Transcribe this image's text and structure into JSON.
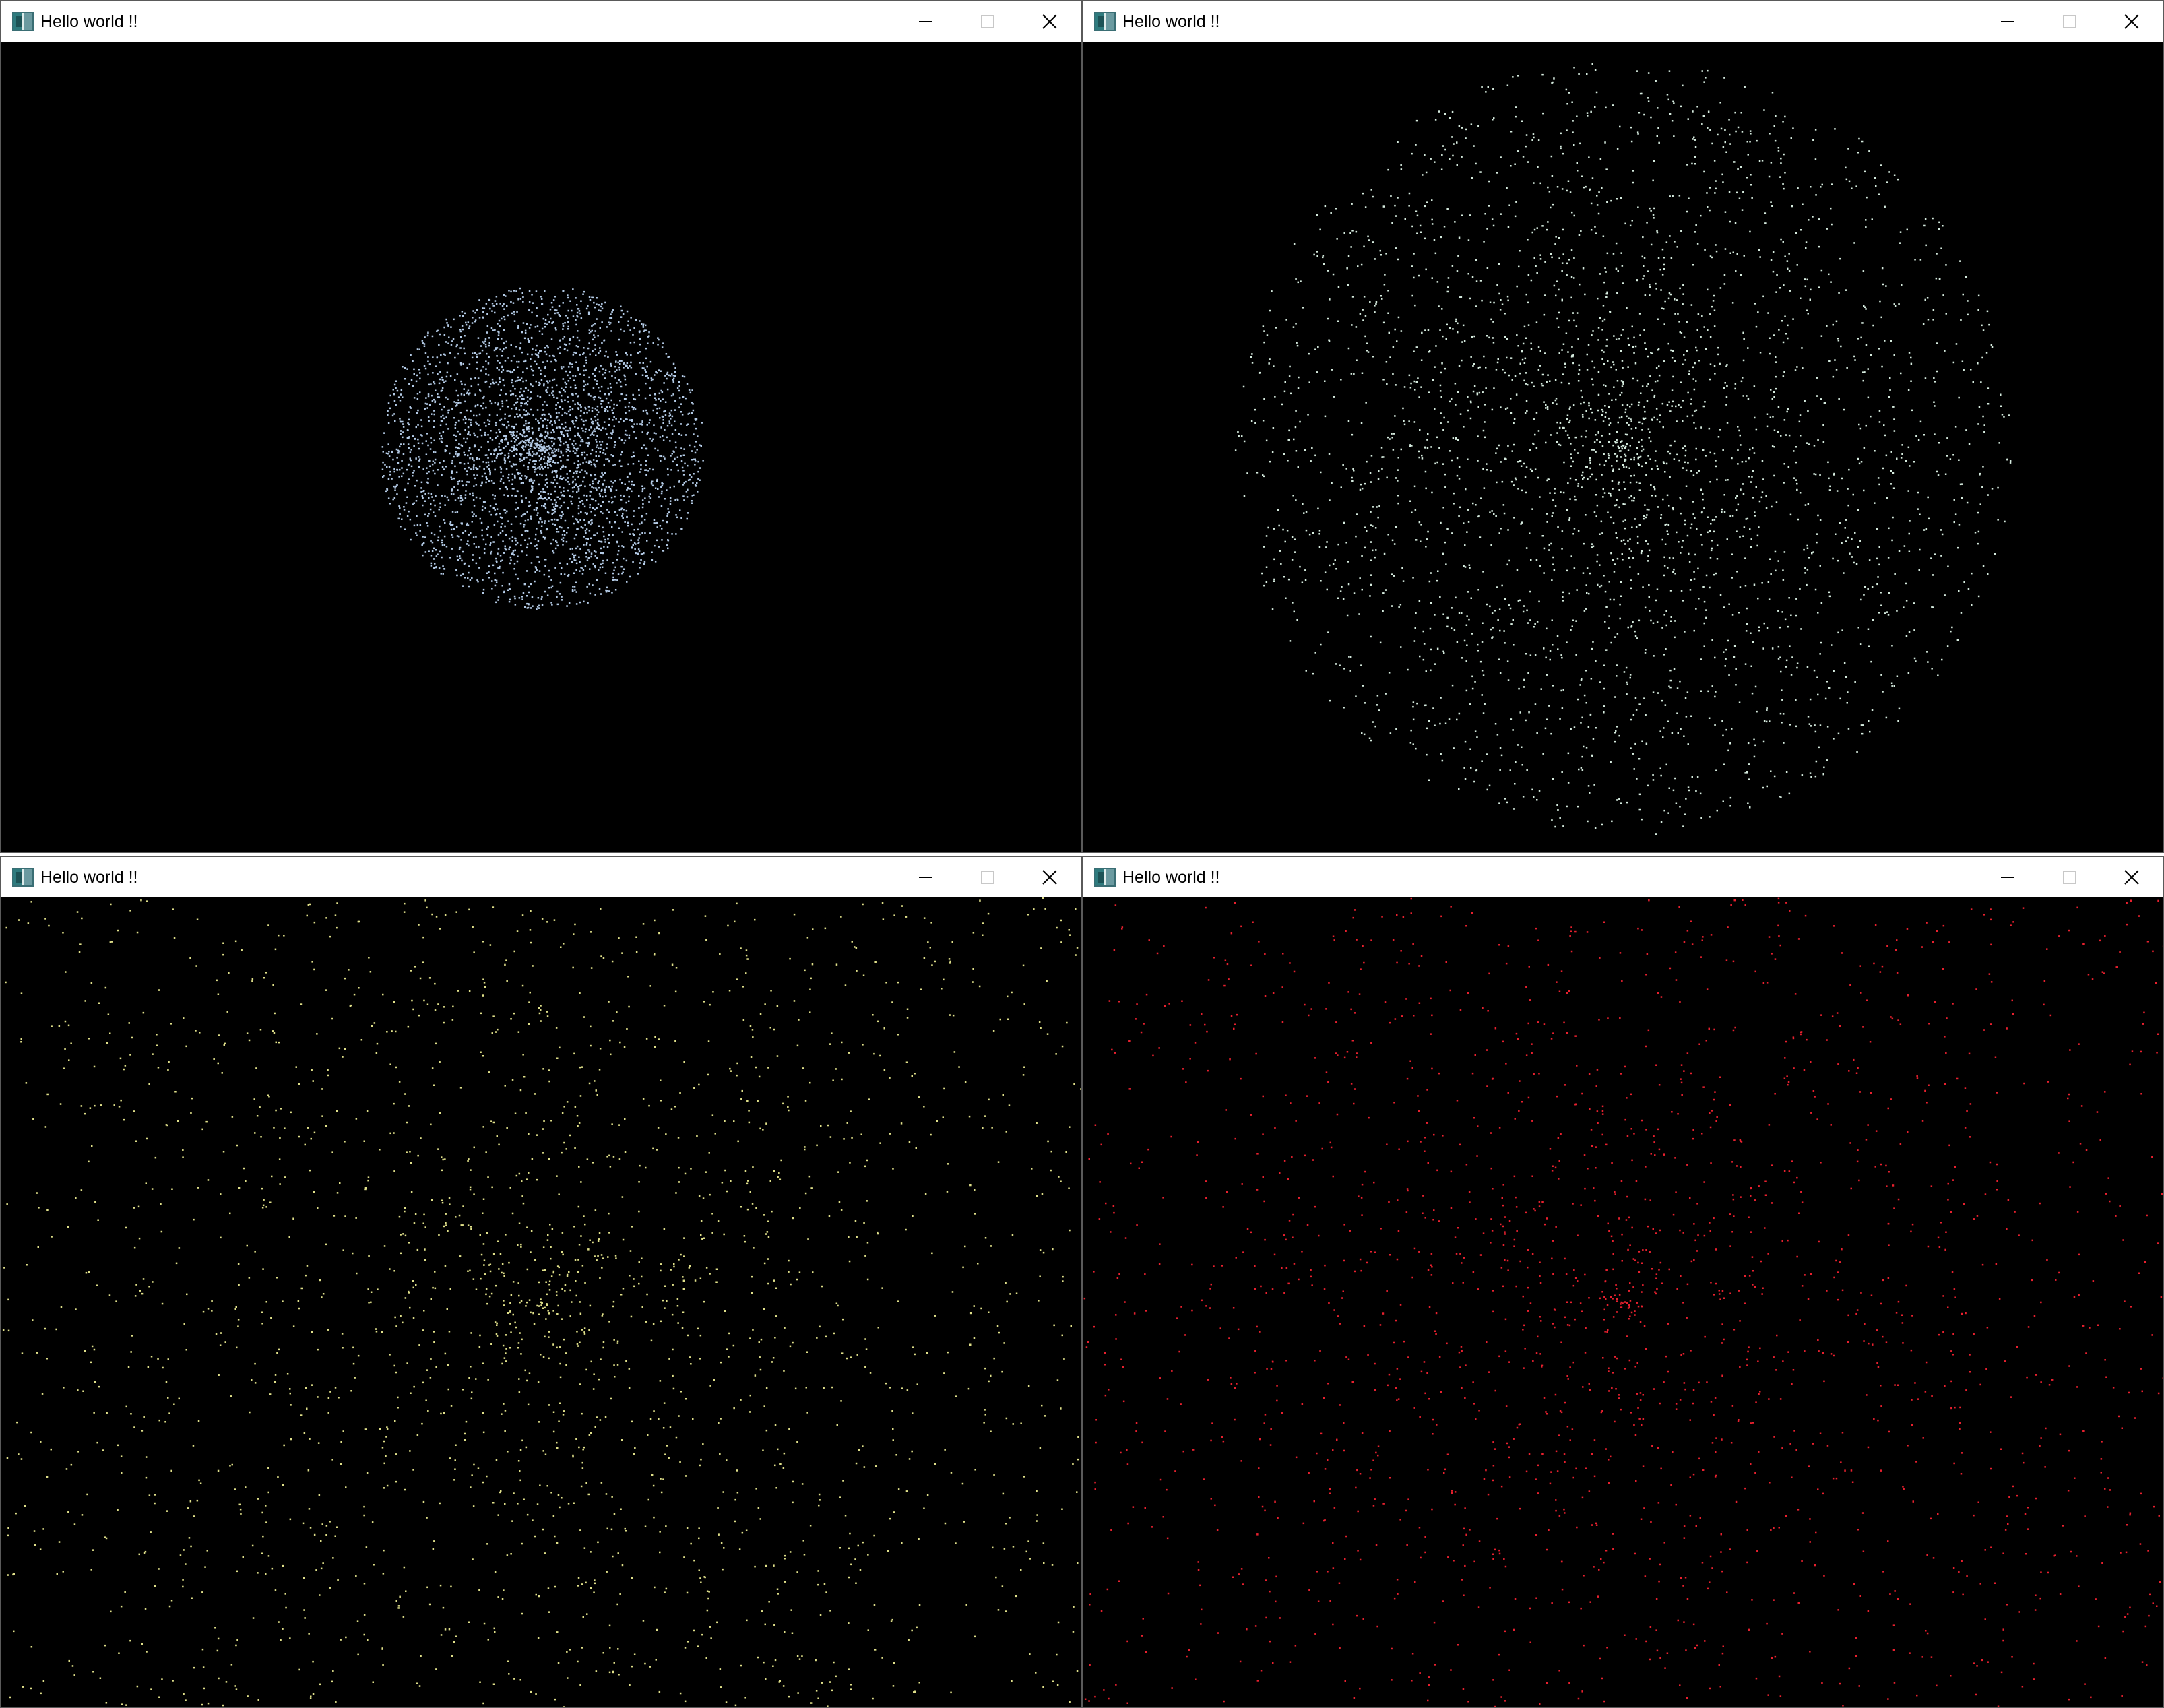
{
  "windows": [
    {
      "title": "Hello world !!",
      "particle_color": "#b4cbe6",
      "particle_count": 3200,
      "spread": "compact"
    },
    {
      "title": "Hello world !!",
      "particle_color": "#d6ecdf",
      "particle_count": 3000,
      "spread": "medium"
    },
    {
      "title": "Hello world !!",
      "particle_color": "#e0e08a",
      "particle_count": 3000,
      "spread": "wide"
    },
    {
      "title": "Hello world !!",
      "particle_color": "#e8202e",
      "particle_count": 3000,
      "spread": "wide"
    }
  ],
  "caption_icons": {
    "minimize": "minimize-icon",
    "maximize": "maximize-icon",
    "close": "close-icon"
  }
}
